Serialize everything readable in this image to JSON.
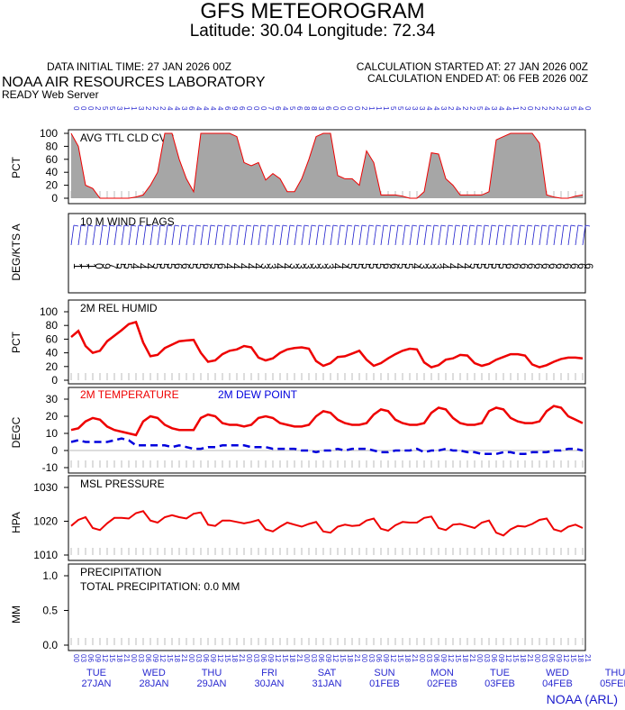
{
  "title": "GFS METEOROGRAM",
  "subtitle": "Latitude: 30.04 Longitude:  72.34",
  "header": {
    "init_time": "DATA INITIAL TIME: 27 JAN 2026 00Z",
    "calc_started": "CALCULATION STARTED AT: 27 JAN 2026 00Z",
    "calc_ended": "CALCULATION ENDED AT: 06 FEB 2026 00Z",
    "lab": "NOAA AIR RESOURCES LABORATORY",
    "server": "READY Web Server"
  },
  "credit": "NOAA (ARL)",
  "colors": {
    "axis_labels": "#2a2ad0",
    "temperature": "#ee0000",
    "dew_point": "#0000dd",
    "cloud_fill": "#a6a6a6",
    "cloud_line": "#ee0000",
    "humidity": "#ee0000",
    "pressure": "#ee0000"
  },
  "x_axis": {
    "hour_labels": [
      "00",
      "03",
      "06",
      "09",
      "12",
      "15",
      "18",
      "21"
    ],
    "days": [
      {
        "dow": "TUE",
        "date": "27JAN"
      },
      {
        "dow": "WED",
        "date": "28JAN"
      },
      {
        "dow": "THU",
        "date": "29JAN"
      },
      {
        "dow": "FRI",
        "date": "30JAN"
      },
      {
        "dow": "SAT",
        "date": "31JAN"
      },
      {
        "dow": "SUN",
        "date": "01FEB"
      },
      {
        "dow": "MON",
        "date": "02FEB"
      },
      {
        "dow": "TUE",
        "date": "03FEB"
      },
      {
        "dow": "WED",
        "date": "04FEB"
      },
      {
        "dow": "THU",
        "date": "05FEB"
      }
    ]
  },
  "chart_data": [
    {
      "type": "area",
      "title": "AVG TTL CLD CVR",
      "ylabel": "PCT",
      "ylim": [
        0,
        100
      ],
      "yticks": [
        0,
        20,
        40,
        60,
        80,
        100
      ],
      "values": [
        100,
        80,
        20,
        15,
        0,
        0,
        0,
        0,
        0,
        2,
        5,
        20,
        40,
        100,
        100,
        60,
        30,
        10,
        100,
        100,
        100,
        100,
        100,
        95,
        55,
        50,
        55,
        28,
        38,
        30,
        10,
        10,
        30,
        60,
        95,
        100,
        100,
        35,
        30,
        30,
        20,
        73,
        55,
        5,
        5,
        5,
        3,
        0,
        0,
        10,
        70,
        68,
        30,
        20,
        5,
        5,
        5,
        5,
        10,
        90,
        95,
        100,
        100,
        100,
        100,
        85,
        5,
        2,
        0,
        0,
        3,
        5
      ],
      "top_labels": [
        "0",
        "0",
        "0",
        "2",
        "5",
        "5",
        "3",
        "1",
        "1",
        "3",
        "2",
        "2",
        "2",
        "4",
        "4",
        "3",
        "6",
        "4",
        "4",
        "4",
        "4",
        "6",
        "9",
        "6",
        "0",
        "0",
        "0",
        "7",
        "6",
        "4",
        "5",
        "6",
        "8",
        "8",
        "3",
        "6",
        "0",
        "0",
        "0",
        "0",
        "2",
        "1",
        "1",
        "1",
        "5",
        "5",
        "3",
        "3",
        "3",
        "4",
        "4",
        "3",
        "2",
        "4",
        "2",
        "2",
        "5",
        "4",
        "3",
        "4",
        "4",
        "1",
        "2",
        "0",
        "2",
        "2",
        "2",
        "2",
        "3",
        "5",
        "4",
        "0"
      ]
    },
    {
      "type": "table",
      "title": "10 M  WIND FLAGS",
      "ylabel": "DEG/KTS  A",
      "speed_labels": [
        "1",
        "1",
        "1",
        "0",
        "9",
        "7",
        "5",
        "5",
        "4",
        "4",
        "4",
        "5",
        "5",
        "5",
        "6",
        "6",
        "5",
        "5",
        "6",
        "5",
        "6",
        "4",
        "4",
        "4",
        "4",
        "4",
        "3",
        "3",
        "4",
        "4",
        "3",
        "3",
        "3",
        "3",
        "3",
        "3",
        "4",
        "4",
        "5",
        "5",
        "5",
        "5",
        "5",
        "6",
        "6",
        "5",
        "5",
        "4",
        "3",
        "3",
        "3",
        "4",
        "4",
        "4",
        "4",
        "5",
        "5",
        "5",
        "5",
        "5",
        "6",
        "6",
        "6",
        "6",
        "6",
        "6",
        "6",
        "6",
        "6",
        "6",
        "6",
        "6"
      ]
    },
    {
      "type": "line",
      "title": "2M REL HUMID",
      "ylabel": "PCT",
      "ylim": [
        0,
        100
      ],
      "yticks": [
        0,
        20,
        40,
        60,
        80,
        100
      ],
      "values": [
        63,
        72,
        50,
        40,
        43,
        57,
        65,
        73,
        82,
        85,
        55,
        35,
        37,
        47,
        52,
        57,
        58,
        59,
        40,
        27,
        29,
        38,
        43,
        45,
        50,
        48,
        33,
        29,
        32,
        40,
        45,
        47,
        48,
        46,
        28,
        21,
        25,
        34,
        35,
        39,
        43,
        30,
        21,
        25,
        32,
        38,
        43,
        46,
        45,
        26,
        19,
        22,
        30,
        32,
        37,
        36,
        25,
        21,
        24,
        30,
        34,
        38,
        38,
        36,
        23,
        19,
        22,
        27,
        31,
        33,
        33,
        32
      ],
      "series": [
        {
          "name": "2M REL HUMID"
        }
      ]
    },
    {
      "type": "line",
      "title": "",
      "ylabel": "DEGC",
      "ylim": [
        -10,
        30
      ],
      "yticks": [
        -10,
        0,
        10,
        20,
        30
      ],
      "series": [
        {
          "name": "2M TEMPERATURE",
          "values": [
            12,
            13,
            17,
            19,
            18,
            14,
            12,
            11,
            10,
            9,
            17,
            20,
            19,
            15,
            13,
            12,
            12,
            12,
            19,
            21,
            20,
            16,
            15,
            15,
            14,
            15,
            19,
            20,
            19,
            16,
            15,
            14,
            14,
            15,
            20,
            23,
            22,
            18,
            16,
            15,
            15,
            16,
            21,
            24,
            23,
            18,
            16,
            15,
            15,
            16,
            22,
            25,
            24,
            19,
            16,
            15,
            15,
            16,
            23,
            25,
            24,
            19,
            17,
            16,
            16,
            17,
            23,
            26,
            25,
            20,
            18,
            16
          ]
        },
        {
          "name": "2M  DEW POINT",
          "values": [
            5,
            6,
            5,
            5,
            5,
            5,
            6,
            7,
            6,
            3,
            3,
            3,
            3,
            3,
            2,
            3,
            2,
            1,
            1,
            2,
            2,
            3,
            3,
            3,
            3,
            2,
            2,
            2,
            1,
            1,
            1,
            1,
            0,
            0,
            -1,
            0,
            0,
            1,
            0,
            1,
            1,
            1,
            0,
            -1,
            -1,
            0,
            0,
            0,
            1,
            -1,
            0,
            0,
            1,
            0,
            0,
            -1,
            -1,
            -2,
            -2,
            -2,
            -1,
            -1,
            -2,
            -2,
            -1,
            -1,
            -1,
            0,
            0,
            1,
            1,
            0
          ]
        }
      ]
    },
    {
      "type": "line",
      "title": "MSL PRESSURE",
      "ylabel": "HPA",
      "ylim": [
        1010,
        1030
      ],
      "yticks": [
        1010,
        1020,
        1030
      ],
      "values": [
        1018.6,
        1020.4,
        1021.2,
        1018.0,
        1017.4,
        1019.4,
        1021.0,
        1021.0,
        1020.8,
        1022.4,
        1023.0,
        1020.2,
        1019.6,
        1021.2,
        1021.8,
        1021.2,
        1020.8,
        1022.2,
        1022.6,
        1019.0,
        1018.6,
        1020.2,
        1020.2,
        1019.8,
        1019.4,
        1019.8,
        1020.4,
        1017.6,
        1017.0,
        1018.4,
        1019.6,
        1019.0,
        1018.4,
        1019.2,
        1019.8,
        1017.0,
        1016.6,
        1018.4,
        1019.0,
        1018.6,
        1018.8,
        1020.2,
        1020.8,
        1017.8,
        1017.2,
        1018.8,
        1019.8,
        1019.6,
        1019.6,
        1021.0,
        1021.4,
        1018.0,
        1017.4,
        1019.0,
        1019.2,
        1018.6,
        1018.0,
        1019.6,
        1020.2,
        1016.6,
        1015.8,
        1017.6,
        1018.6,
        1018.4,
        1019.2,
        1020.4,
        1020.8,
        1017.6,
        1017.0,
        1018.4,
        1019.0,
        1018.0
      ]
    },
    {
      "type": "line",
      "title": "PRECIPITATION",
      "ylabel": "MM",
      "ylim": [
        0,
        1
      ],
      "yticks": [
        "0.0",
        "0.5",
        "1.0"
      ],
      "annotation": "TOTAL PRECIPITATION:   0.0 MM",
      "values": []
    }
  ]
}
